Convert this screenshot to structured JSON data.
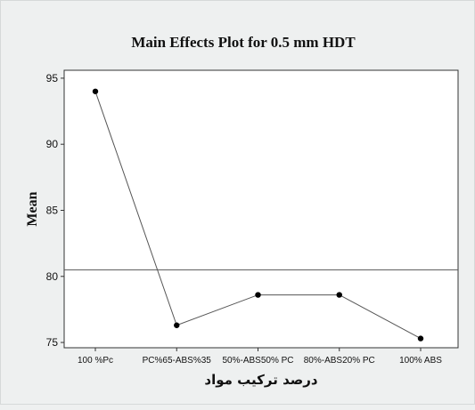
{
  "chart_data": {
    "type": "line",
    "title": "Main Effects Plot for 0.5 mm HDT",
    "xlabel": "درصد ترکیب مواد",
    "ylabel": "Mean",
    "categories": [
      "100 %Pc",
      "PC%65-ABS%35",
      "50%-ABS50% PC",
      "80%-ABS20% PC",
      "100% ABS"
    ],
    "values": [
      94.0,
      76.3,
      78.6,
      78.6,
      75.3
    ],
    "reference_line": 80.5,
    "ylim": [
      74.6,
      95.6
    ],
    "yticks": [
      75,
      80,
      85,
      90,
      95
    ],
    "grid": false,
    "legend": "none",
    "colors": {
      "background": "#eef0f0",
      "plot_area": "#ffffff",
      "line": "#555555",
      "point": "#000000",
      "axis": "#333333"
    }
  }
}
